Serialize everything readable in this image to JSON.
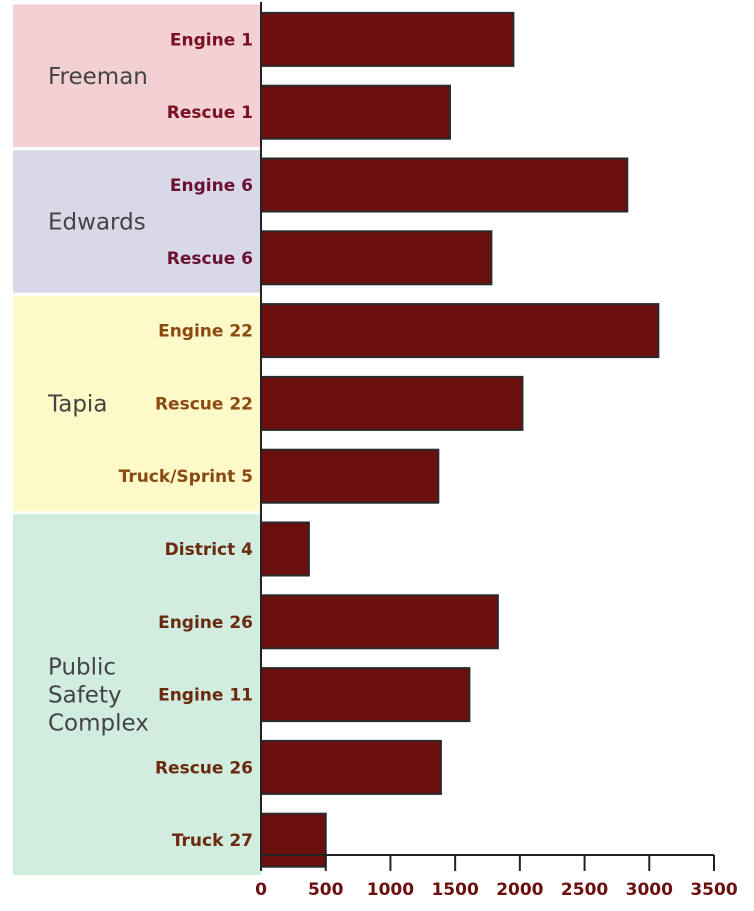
{
  "chart_data": {
    "type": "bar",
    "orientation": "horizontal",
    "title": "",
    "xlabel": "",
    "ylabel": "",
    "xlim": [
      0,
      3500
    ],
    "xticks": [
      0,
      500,
      1000,
      1500,
      2000,
      2500,
      3000,
      3500
    ],
    "xtick_labels": [
      "0",
      "500",
      "1000",
      "1500",
      "2000",
      "2500",
      "3000",
      "3500"
    ],
    "grid": false,
    "bar_color": "#6b0f0f",
    "groups": [
      {
        "name": "Freeman",
        "label_lines": [
          "Freeman"
        ],
        "band_color": "#f2d0d3",
        "unit_label_color": "#7a1020",
        "units": [
          {
            "name": "Engine 1",
            "value": 1950
          },
          {
            "name": "Rescue 1",
            "value": 1460
          }
        ]
      },
      {
        "name": "Edwards",
        "label_lines": [
          "Edwards"
        ],
        "band_color": "#d8d8e8",
        "unit_label_color": "#6b1030",
        "units": [
          {
            "name": "Engine 6",
            "value": 2830
          },
          {
            "name": "Rescue 6",
            "value": 1780
          }
        ]
      },
      {
        "name": "Tapia",
        "label_lines": [
          "Tapia"
        ],
        "band_color": "#fdf9c9",
        "unit_label_color": "#8a4a10",
        "units": [
          {
            "name": "Engine 22",
            "value": 3070
          },
          {
            "name": "Rescue 22",
            "value": 2020
          },
          {
            "name": "Truck/Sprint 5",
            "value": 1370
          }
        ]
      },
      {
        "name": "Public Safety Complex",
        "label_lines": [
          "Public",
          "Safety",
          "Complex"
        ],
        "band_color": "#d0ede0",
        "unit_label_color": "#6b2a10",
        "units": [
          {
            "name": "District 4",
            "value": 370
          },
          {
            "name": "Engine 26",
            "value": 1830
          },
          {
            "name": "Engine 11",
            "value": 1610
          },
          {
            "name": "Rescue 26",
            "value": 1390
          },
          {
            "name": "Truck 27",
            "value": 500
          }
        ]
      }
    ]
  }
}
